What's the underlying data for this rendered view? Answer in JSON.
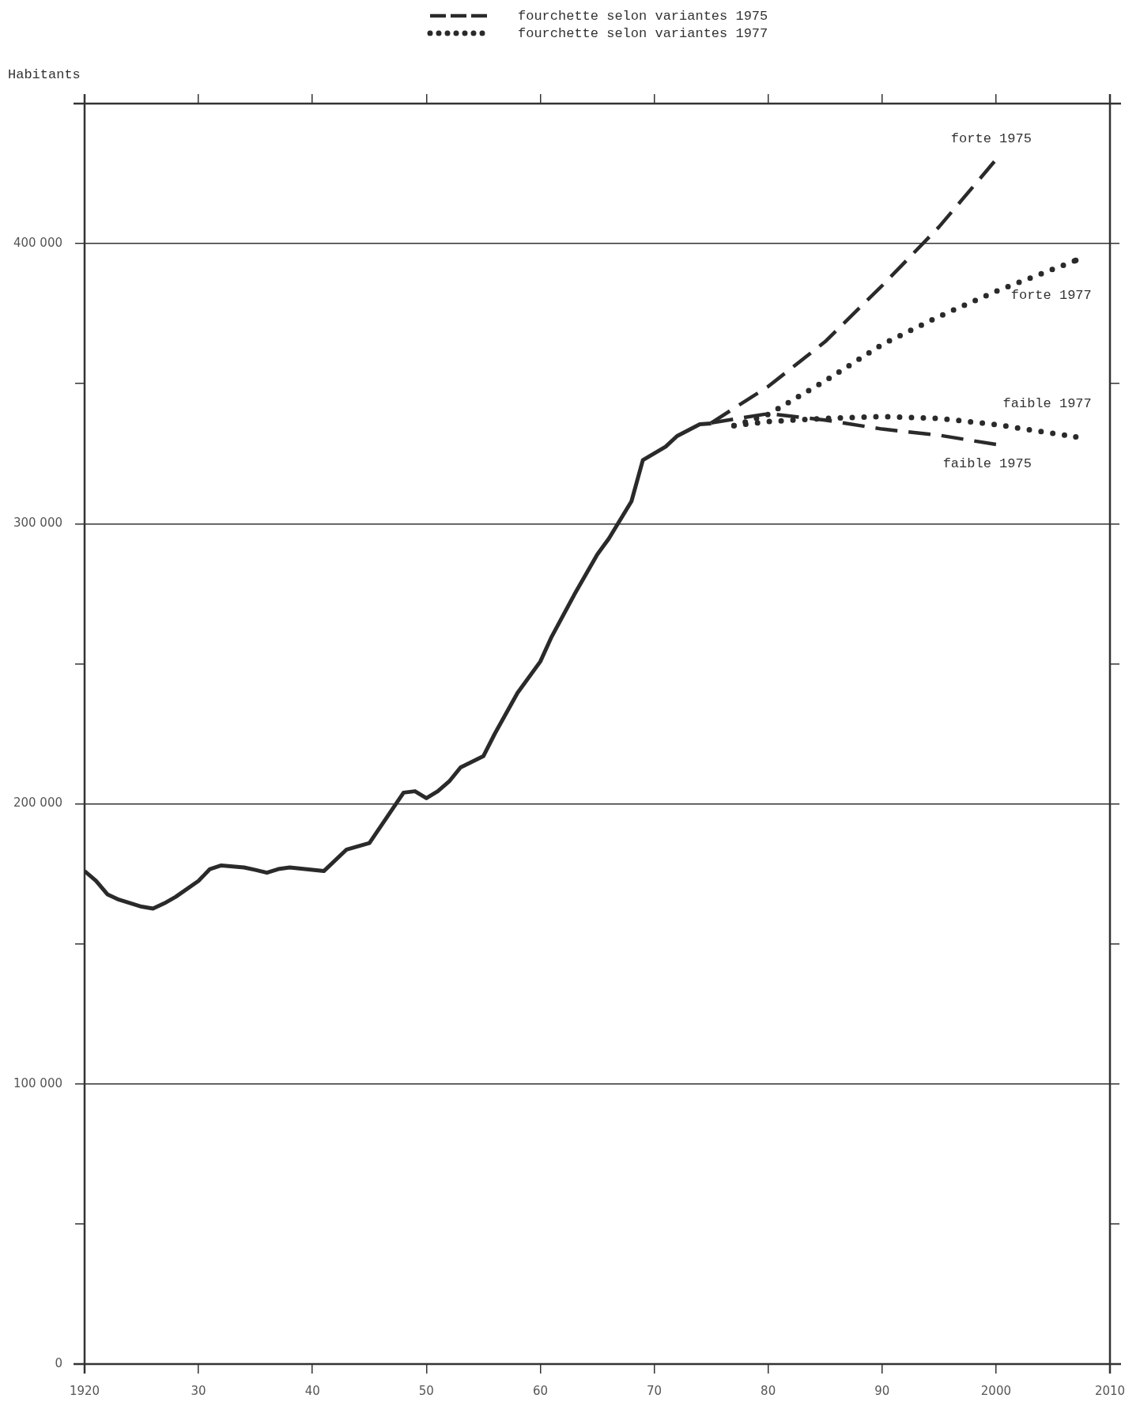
{
  "chart_data": {
    "type": "line",
    "ylabel": "Habitants",
    "legend": "top",
    "grid": "y",
    "xlim": [
      1920,
      2010
    ],
    "xticks": [
      {
        "value": 1920,
        "label": "1920"
      },
      {
        "value": 1930,
        "label": "30"
      },
      {
        "value": 1940,
        "label": "40"
      },
      {
        "value": 1950,
        "label": "50"
      },
      {
        "value": 1960,
        "label": "60"
      },
      {
        "value": 1970,
        "label": "70"
      },
      {
        "value": 1980,
        "label": "80"
      },
      {
        "value": 1990,
        "label": "90"
      },
      {
        "value": 2000,
        "label": "2000"
      },
      {
        "value": 2010,
        "label": "2010"
      }
    ],
    "ylim": [
      0,
      450000
    ],
    "yticks": [
      0,
      {
        "value": 50000,
        "label": null
      },
      {
        "value": 100000,
        "label": "100 000"
      },
      {
        "value": 150000,
        "label": null
      },
      {
        "value": 200000,
        "label": "200 000"
      },
      {
        "value": 250000,
        "label": null
      },
      {
        "value": 300000,
        "label": "300 000"
      },
      {
        "value": 350000,
        "label": null
      },
      {
        "value": 400000,
        "label": "400 000"
      },
      {
        "value": 450000,
        "label": null
      }
    ],
    "series": [
      {
        "color": "#2a2a2a",
        "line_style": "solid",
        "x": [
          1920,
          1921,
          1922,
          1923,
          1925,
          1926,
          1927,
          1928,
          1930,
          1931,
          1932,
          1934,
          1935,
          1936,
          1937,
          1938,
          1941,
          1943,
          1945,
          1947,
          1948,
          1949,
          1950,
          1951,
          1952,
          1953,
          1955,
          1956,
          1958,
          1960,
          1961,
          1963,
          1965,
          1966,
          1968,
          1969,
          1971,
          1972,
          1974,
          1975
        ],
        "values": [
          176000,
          172500,
          167700,
          165800,
          163300,
          162600,
          164500,
          166800,
          172500,
          176700,
          178000,
          177300,
          176400,
          175400,
          176700,
          177300,
          176000,
          183700,
          186000,
          198000,
          204000,
          204500,
          202000,
          204500,
          208000,
          213000,
          217000,
          225000,
          239600,
          250800,
          259700,
          274800,
          289000,
          294600,
          308000,
          322700,
          327500,
          331300,
          335500,
          335800
        ]
      },
      {
        "name": "fourchette selon variantes 1975",
        "color": "#2a2a2a",
        "line_style": "dashed",
        "x": [
          1975,
          1980,
          1985,
          1990,
          1995,
          2000
        ],
        "values": [
          336000,
          349000,
          365000,
          385000,
          406000,
          430000
        ]
      },
      {
        "color": "#2a2a2a",
        "line_style": "dashed",
        "x": [
          1975,
          1980,
          1985,
          1990,
          1995,
          2000
        ],
        "values": [
          336000,
          339300,
          337000,
          333800,
          331600,
          328300
        ]
      },
      {
        "name": "fourchette selon variantes 1977",
        "color": "#2a2a2a",
        "line_style": "dotted",
        "x": [
          1977,
          1980,
          1985,
          1990,
          1995,
          2000,
          2007
        ],
        "values": [
          335000,
          339000,
          351000,
          364000,
          374000,
          383000,
          394000
        ]
      },
      {
        "color": "#2a2a2a",
        "line_style": "dotted",
        "x": [
          1977,
          1980,
          1985,
          1990,
          1995,
          2000,
          2007
        ],
        "values": [
          335000,
          336500,
          337600,
          338300,
          337600,
          335400,
          331000
        ]
      }
    ],
    "annotations": [
      "forte 1975",
      "faible 1975",
      "forte 1977",
      "faible 1977"
    ]
  }
}
